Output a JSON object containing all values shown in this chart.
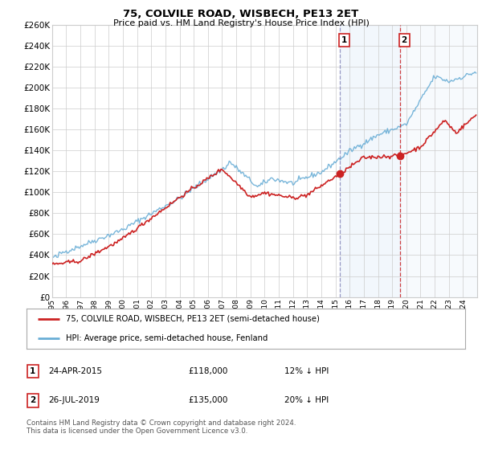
{
  "title": "75, COLVILE ROAD, WISBECH, PE13 2ET",
  "subtitle": "Price paid vs. HM Land Registry's House Price Index (HPI)",
  "ylim": [
    0,
    260000
  ],
  "yticks": [
    0,
    20000,
    40000,
    60000,
    80000,
    100000,
    120000,
    140000,
    160000,
    180000,
    200000,
    220000,
    240000,
    260000
  ],
  "xlim_start": 1995.0,
  "xlim_end": 2025.0,
  "hpi_color": "#6aaed6",
  "price_color": "#cc2222",
  "transaction1_x": 2015.3,
  "transaction1_y": 118000,
  "transaction2_x": 2019.55,
  "transaction2_y": 135000,
  "transaction1_date": "24-APR-2015",
  "transaction1_price": "£118,000",
  "transaction1_hpi": "12% ↓ HPI",
  "transaction2_date": "26-JUL-2019",
  "transaction2_price": "£135,000",
  "transaction2_hpi": "20% ↓ HPI",
  "legend_line1": "75, COLVILE ROAD, WISBECH, PE13 2ET (semi-detached house)",
  "legend_line2": "HPI: Average price, semi-detached house, Fenland",
  "footer": "Contains HM Land Registry data © Crown copyright and database right 2024.\nThis data is licensed under the Open Government Licence v3.0.",
  "background_color": "#ffffff",
  "grid_color": "#cccccc",
  "shade_color": "#ddeeff",
  "vline1_color": "#8888bb",
  "vline2_color": "#cc2222"
}
